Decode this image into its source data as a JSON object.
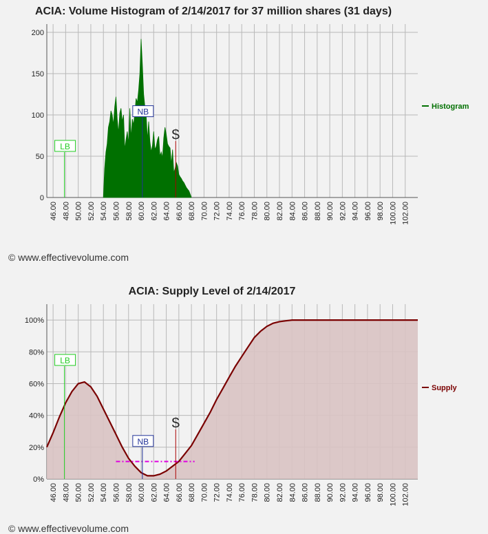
{
  "copyright_top": "© www.effectivevolume.com",
  "copyright_bottom": "© www.effectivevolume.com",
  "chart_data": [
    {
      "type": "area",
      "title": "ACIA: Volume Histogram of 2/14/2017 for 37 million shares (31 days)",
      "xlabel": "",
      "ylabel": "",
      "xlim": [
        45,
        104
      ],
      "ylim": [
        0,
        210
      ],
      "x_ticks": [
        "46.00",
        "48.00",
        "50.00",
        "52.00",
        "54.00",
        "56.00",
        "58.00",
        "60.00",
        "62.00",
        "64.00",
        "66.00",
        "68.00",
        "70.00",
        "72.00",
        "74.00",
        "76.00",
        "78.00",
        "80.00",
        "82.00",
        "84.00",
        "86.00",
        "88.00",
        "90.00",
        "92.00",
        "94.00",
        "96.00",
        "98.00",
        "100.00",
        "102.00"
      ],
      "y_ticks": [
        "0",
        "50",
        "100",
        "150",
        "200"
      ],
      "grid": true,
      "legend_position": "right",
      "series": [
        {
          "name": "Histogram",
          "color": "#007000",
          "x": [
            54.0,
            54.2,
            54.4,
            54.6,
            54.8,
            55.0,
            55.2,
            55.4,
            55.6,
            55.8,
            56.0,
            56.2,
            56.4,
            56.6,
            56.8,
            57.0,
            57.2,
            57.4,
            57.6,
            57.8,
            58.0,
            58.2,
            58.4,
            58.6,
            58.8,
            59.0,
            59.2,
            59.4,
            59.6,
            59.8,
            60.0,
            60.2,
            60.4,
            60.6,
            60.8,
            61.0,
            61.2,
            61.4,
            61.6,
            61.8,
            62.0,
            62.2,
            62.4,
            62.6,
            62.8,
            63.0,
            63.2,
            63.4,
            63.6,
            63.8,
            64.0,
            64.2,
            64.4,
            64.6,
            64.8,
            65.0,
            65.2,
            65.4,
            65.6,
            65.8,
            66.0,
            66.2,
            66.4,
            66.6,
            66.8,
            67.0,
            67.2,
            67.4,
            67.6,
            67.8,
            68.0
          ],
          "values": [
            0,
            35,
            55,
            65,
            85,
            92,
            105,
            100,
            88,
            110,
            122,
            95,
            78,
            102,
            108,
            92,
            100,
            58,
            70,
            80,
            65,
            108,
            72,
            95,
            88,
            102,
            120,
            115,
            130,
            150,
            192,
            160,
            125,
            110,
            100,
            70,
            92,
            68,
            55,
            63,
            80,
            58,
            62,
            70,
            74,
            50,
            55,
            48,
            72,
            85,
            76,
            65,
            62,
            60,
            40,
            58,
            30,
            35,
            42,
            38,
            28,
            25,
            23,
            20,
            18,
            15,
            12,
            10,
            8,
            4,
            0
          ]
        }
      ],
      "annotations": [
        {
          "label": "LB",
          "x": 47.8,
          "y": 55,
          "color": "#22cc22"
        },
        {
          "label": "NB",
          "x": 60.2,
          "y": 97,
          "color": "#223399"
        },
        {
          "label": "$",
          "x": 65.5,
          "y": 70,
          "color": "#333333"
        }
      ]
    },
    {
      "type": "area",
      "title": "ACIA: Supply Level of 2/14/2017",
      "xlabel": "",
      "ylabel": "",
      "xlim": [
        45,
        104
      ],
      "ylim": [
        0,
        110
      ],
      "x_ticks": [
        "46.00",
        "48.00",
        "50.00",
        "52.00",
        "54.00",
        "56.00",
        "58.00",
        "60.00",
        "62.00",
        "64.00",
        "66.00",
        "68.00",
        "70.00",
        "72.00",
        "74.00",
        "76.00",
        "78.00",
        "80.00",
        "82.00",
        "84.00",
        "86.00",
        "88.00",
        "90.00",
        "92.00",
        "94.00",
        "96.00",
        "98.00",
        "100.00",
        "102.00"
      ],
      "y_ticks": [
        "0%",
        "20%",
        "40%",
        "60%",
        "80%",
        "100%"
      ],
      "grid": true,
      "legend_position": "right",
      "series": [
        {
          "name": "Supply",
          "color": "#7a0000",
          "fill": "#d9c3c3",
          "x": [
            45,
            46,
            47,
            48,
            49,
            50,
            51,
            52,
            53,
            54,
            55,
            56,
            57,
            58,
            59,
            60,
            61,
            62,
            63,
            64,
            65,
            66,
            67,
            68,
            69,
            70,
            71,
            72,
            73,
            74,
            75,
            76,
            77,
            78,
            79,
            80,
            81,
            82,
            83,
            84,
            85,
            86,
            87,
            88,
            90,
            92,
            94,
            96,
            98,
            100,
            102,
            104
          ],
          "values": [
            20,
            29,
            39,
            48,
            55,
            60,
            61,
            58,
            52,
            44,
            36,
            28,
            20,
            13,
            8,
            4,
            2,
            2,
            3,
            5,
            8,
            11,
            16,
            21,
            28,
            35,
            42,
            50,
            57,
            64,
            71,
            77,
            83,
            89,
            93,
            96,
            98,
            99,
            99.5,
            100,
            100,
            100,
            100,
            100,
            100,
            100,
            100,
            100,
            100,
            100,
            100,
            100
          ]
        }
      ],
      "reference_line": {
        "x_start": 56.0,
        "x_end": 68.5,
        "y": 11,
        "color": "#e000e0"
      },
      "annotations": [
        {
          "label": "LB",
          "x": 47.8,
          "y": 71,
          "color": "#22cc22"
        },
        {
          "label": "NB",
          "x": 60.2,
          "y": 20,
          "color": "#223399"
        },
        {
          "label": "$",
          "x": 65.5,
          "y": 32,
          "color": "#333333"
        }
      ]
    }
  ]
}
